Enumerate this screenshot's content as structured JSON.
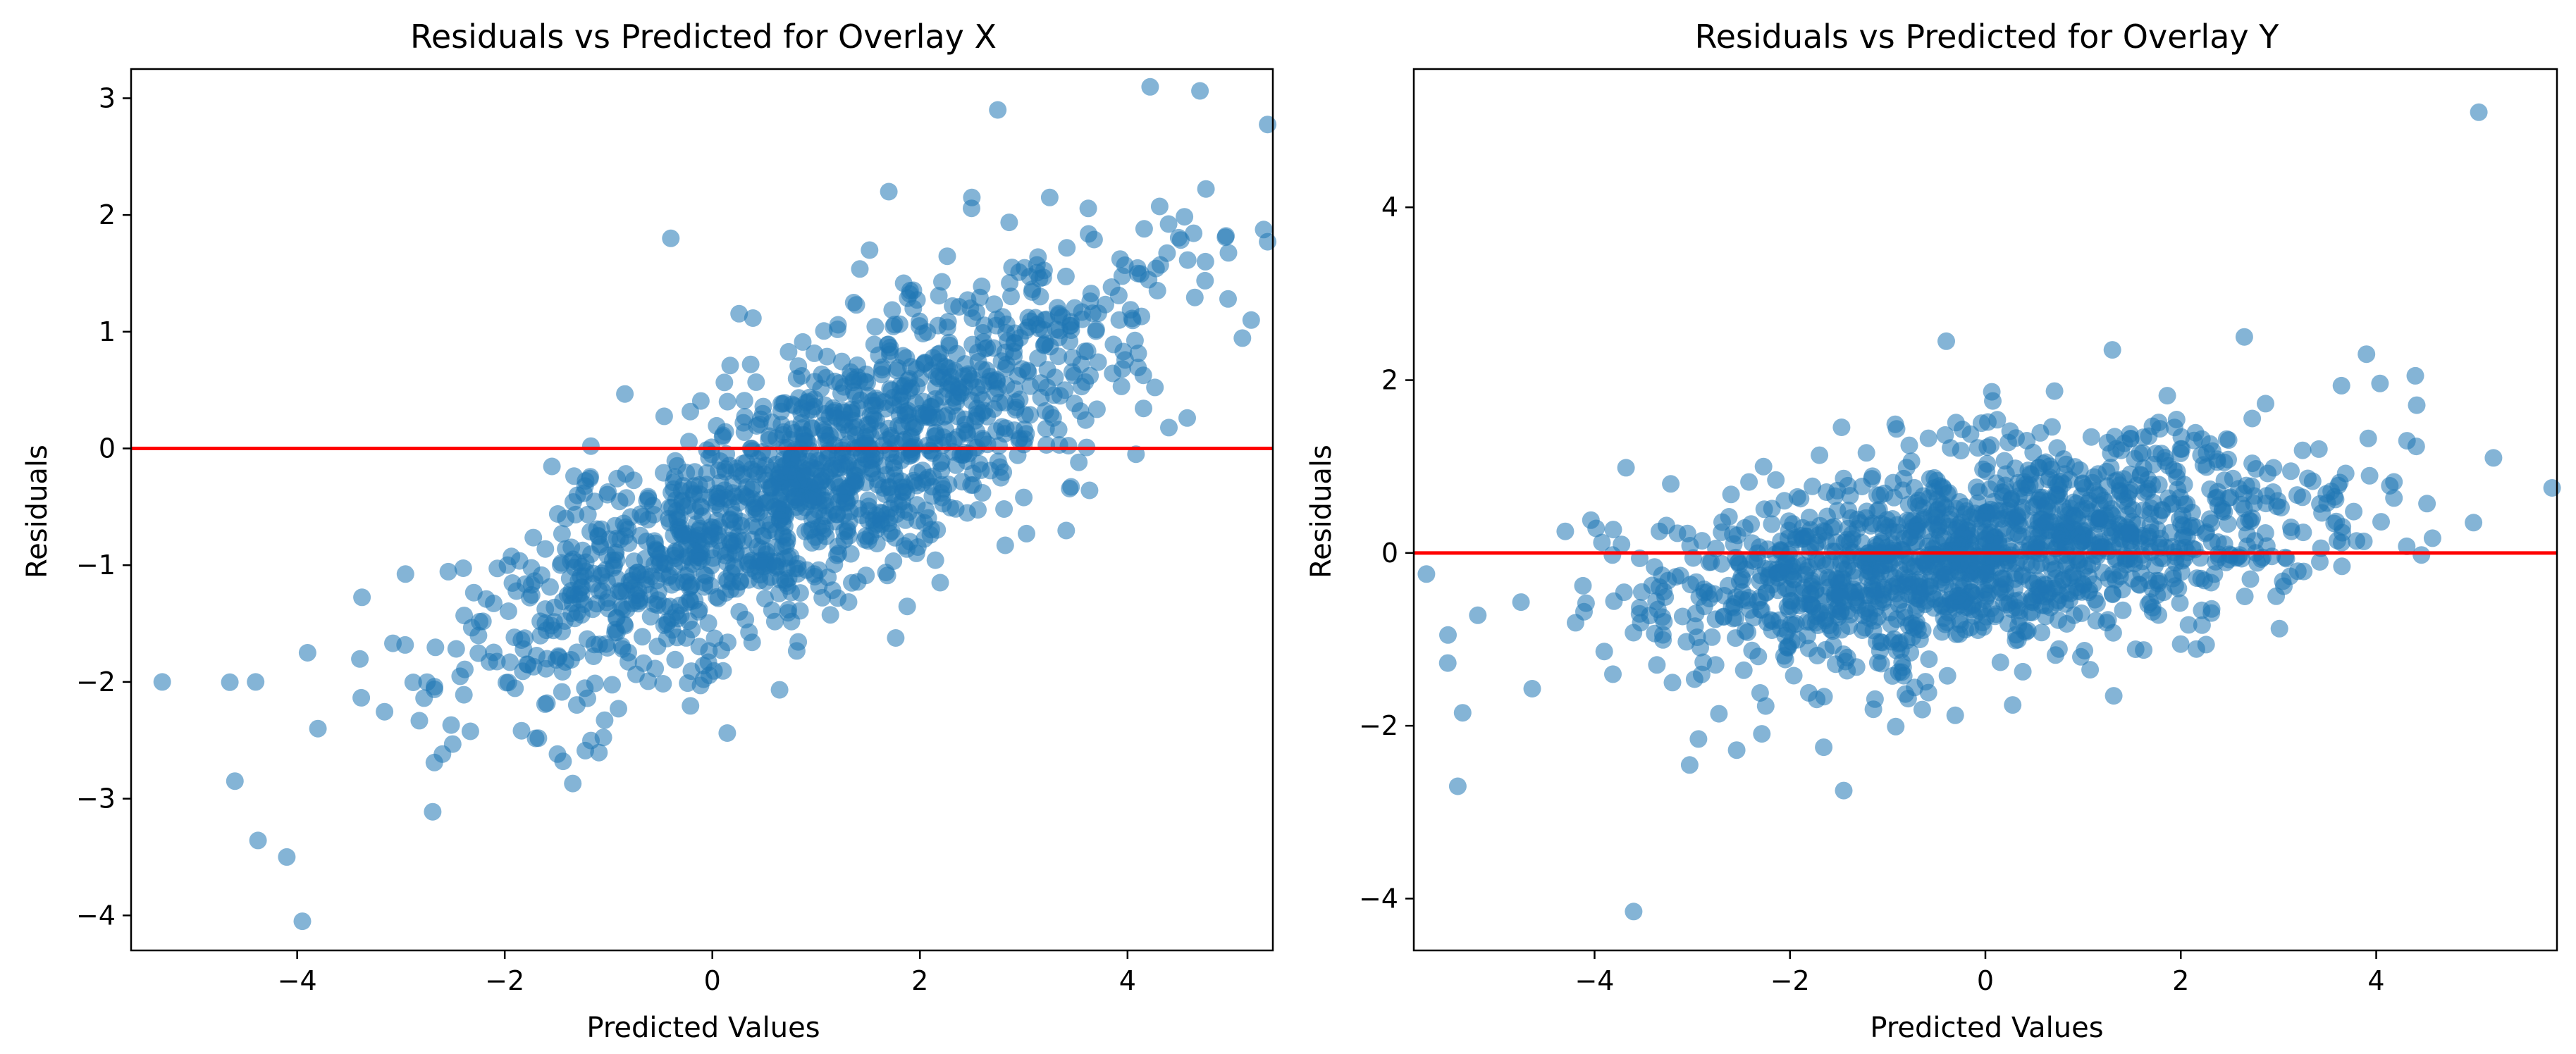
{
  "figure": {
    "layout": "1x2 side-by-side scatter plots"
  },
  "style": {
    "point_color": "#1f77b4",
    "point_opacity": 0.55,
    "zero_line_color": "#ff0000",
    "axes_color": "#000000"
  },
  "chart_data": [
    {
      "type": "scatter",
      "title": "Residuals vs Predicted for Overlay X",
      "xlabel": "Predicted Values",
      "ylabel": "Residuals",
      "xlim": [
        -5.6,
        5.4
      ],
      "ylim": [
        -4.3,
        3.25
      ],
      "xticks": [
        -4,
        -2,
        0,
        2,
        4
      ],
      "xtick_labels": [
        "−4",
        "−2",
        "0",
        "2",
        "4"
      ],
      "yticks": [
        -4,
        -3,
        -2,
        -1,
        0,
        1,
        2,
        3
      ],
      "ytick_labels": [
        "−4",
        "−3",
        "−2",
        "−1",
        "0",
        "1",
        "2",
        "3"
      ],
      "grid": false,
      "reference_line": {
        "orientation": "horizontal",
        "y": 0
      },
      "series": [
        {
          "name": "residuals",
          "n_points": 1500,
          "x_mean": 0.9,
          "x_std": 1.6,
          "slope": 0.45,
          "intercept": -0.7,
          "noise_std": 0.55,
          "seed": 11
        }
      ],
      "notable_points": {
        "x": [
          -5.3,
          -4.4,
          -3.9,
          -3.8,
          -4.1,
          -3.95,
          -4.6,
          2.75,
          4.75,
          -0.4,
          1.7,
          2.5,
          3.25
        ],
        "y": [
          -2.0,
          -2.0,
          -1.75,
          -2.4,
          -3.5,
          -4.05,
          -2.85,
          2.9,
          1.6,
          1.8,
          2.2,
          2.15,
          2.15
        ]
      }
    },
    {
      "type": "scatter",
      "title": "Residuals vs Predicted for Overlay Y",
      "xlabel": "Predicted Values",
      "ylabel": "Residuals",
      "xlim": [
        -5.85,
        5.85
      ],
      "ylim": [
        -4.6,
        5.6
      ],
      "xticks": [
        -4,
        -2,
        0,
        2,
        4
      ],
      "xtick_labels": [
        "−4",
        "−2",
        "0",
        "2",
        "4"
      ],
      "yticks": [
        -4,
        -2,
        0,
        2,
        4
      ],
      "ytick_labels": [
        "−4",
        "−2",
        "0",
        "2",
        "4"
      ],
      "grid": false,
      "reference_line": {
        "orientation": "horizontal",
        "y": 0
      },
      "series": [
        {
          "name": "residuals",
          "n_points": 1500,
          "x_mean": 0.0,
          "x_std": 1.7,
          "slope": 0.15,
          "intercept": 0.0,
          "noise_std": 0.6,
          "seed": 29
        }
      ],
      "notable_points": {
        "x": [
          5.05,
          5.2,
          -3.6,
          -5.4,
          -5.35,
          -5.5,
          -4.3,
          -0.4,
          1.3,
          2.65,
          3.9,
          4.4,
          -1.45
        ],
        "y": [
          5.1,
          1.1,
          -4.15,
          -2.7,
          -1.85,
          -0.95,
          0.25,
          2.45,
          2.35,
          2.5,
          2.3,
          2.05,
          -2.75
        ]
      }
    }
  ]
}
